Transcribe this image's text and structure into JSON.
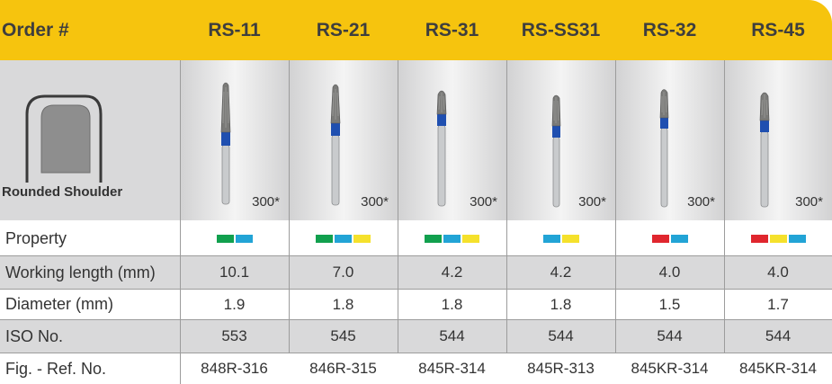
{
  "header": {
    "label": "Order #",
    "columns": [
      "RS-11",
      "RS-21",
      "RS-31",
      "RS-SS31",
      "RS-32",
      "RS-45"
    ]
  },
  "image_row": {
    "shape_label": "Rounded Shoulder",
    "grit": [
      "300*",
      "300*",
      "300*",
      "300*",
      "300*",
      "300*"
    ]
  },
  "colors": {
    "header_bg": "#f6c40e",
    "green": "#11a04e",
    "blue": "#22a4d6",
    "yellow": "#f5e12c",
    "red": "#e0262e",
    "band_blue": "#1f4fb0"
  },
  "rows": [
    {
      "label": "Property",
      "type": "swatches",
      "values": [
        [
          "green",
          "blue"
        ],
        [
          "green",
          "blue",
          "yellow"
        ],
        [
          "green",
          "blue",
          "yellow"
        ],
        [
          "blue",
          "yellow"
        ],
        [
          "red",
          "blue"
        ],
        [
          "red",
          "yellow",
          "blue"
        ]
      ]
    },
    {
      "label": "Working length (mm)",
      "values": [
        "10.1",
        "7.0",
        "4.2",
        "4.2",
        "4.0",
        "4.0"
      ]
    },
    {
      "label": "Diameter (mm)",
      "values": [
        "1.9",
        "1.8",
        "1.8",
        "1.8",
        "1.5",
        "1.7"
      ]
    },
    {
      "label": "ISO No.",
      "values": [
        "553",
        "545",
        "544",
        "544",
        "544",
        "544"
      ]
    },
    {
      "label": "Fig. - Ref. No.",
      "values": [
        "848R-316",
        "846R-315",
        "845R-314",
        "845R-313",
        "845KR-314",
        "845KR-314"
      ]
    }
  ]
}
